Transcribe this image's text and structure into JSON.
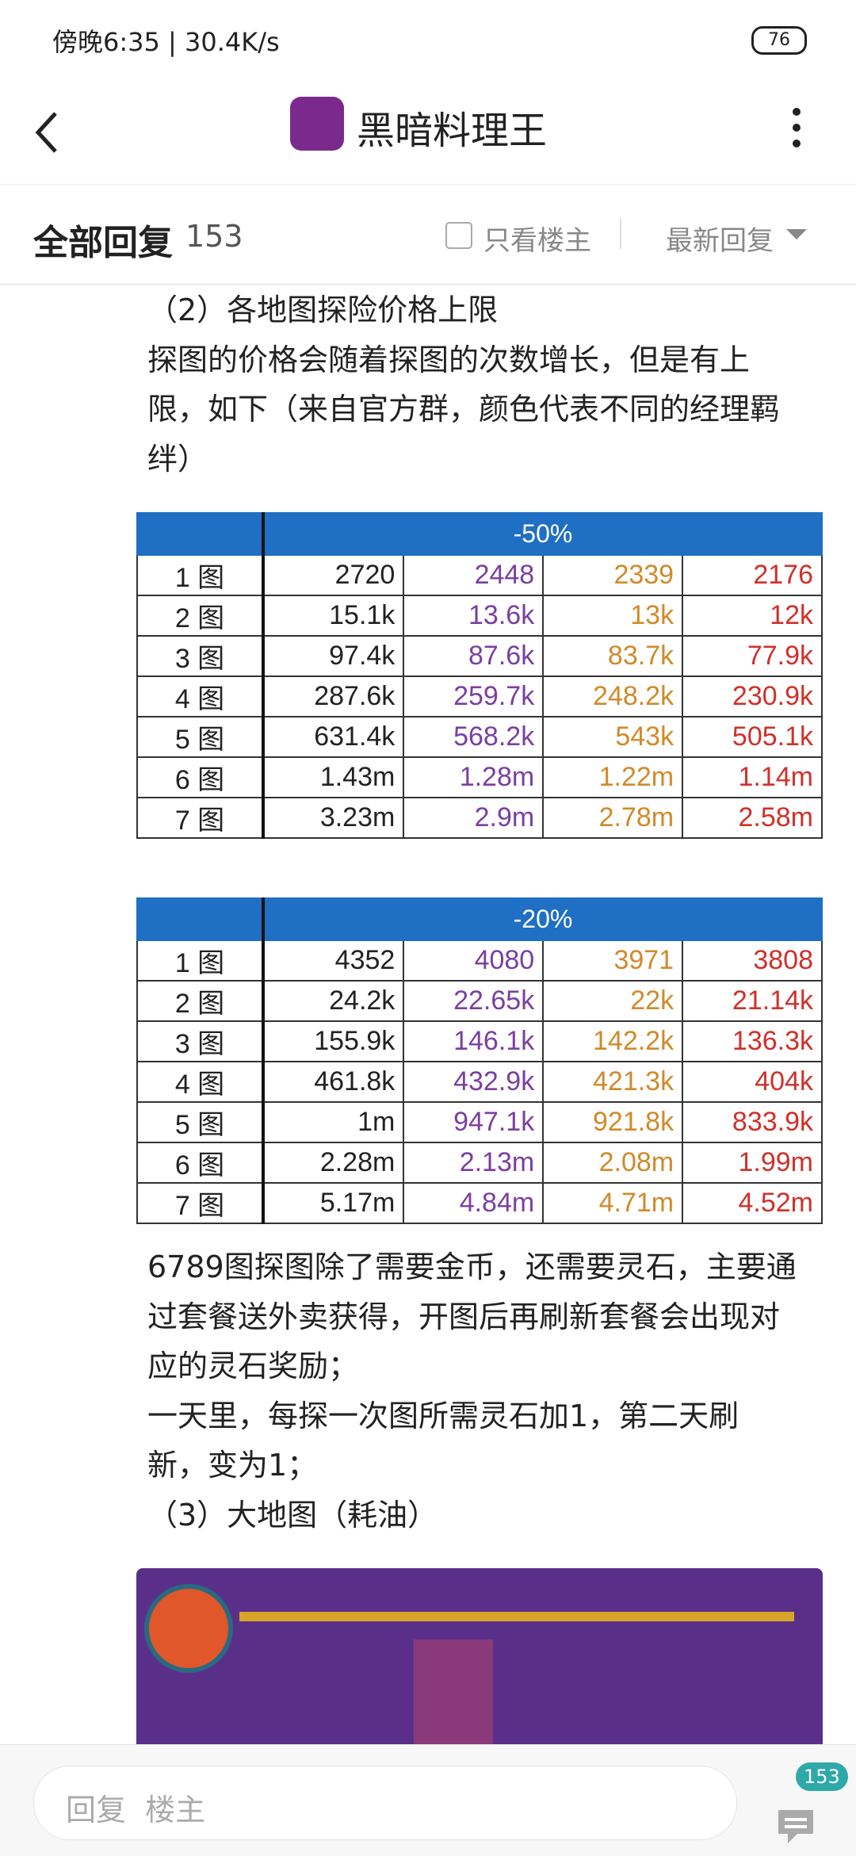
{
  "status_bar": {
    "time": "傍晚6:35 | 30.4K/s",
    "battery": "76"
  },
  "header": {
    "title": "黑暗料理王"
  },
  "reply_bar": {
    "label": "全部回复",
    "count": "153",
    "only_op": "只看楼主",
    "sort": "最新回复"
  },
  "intro_lines": [
    "（2）各地图探险价格上限",
    "探图的价格会随着探图的次数增长，但是有上",
    "限，如下（来自官方群，颜色代表不同的经理羁",
    "绊）"
  ],
  "tables": [
    {
      "header": "-50%",
      "rows": [
        [
          "1 图",
          "2720",
          "2448",
          "2339",
          "2176"
        ],
        [
          "2 图",
          "15.1k",
          "13.6k",
          "13k",
          "12k"
        ],
        [
          "3 图",
          "97.4k",
          "87.6k",
          "83.7k",
          "77.9k"
        ],
        [
          "4 图",
          "287.6k",
          "259.7k",
          "248.2k",
          "230.9k"
        ],
        [
          "5 图",
          "631.4k",
          "568.2k",
          "543k",
          "505.1k"
        ],
        [
          "6 图",
          "1.43m",
          "1.28m",
          "1.22m",
          "1.14m"
        ],
        [
          "7 图",
          "3.23m",
          "2.9m",
          "2.78m",
          "2.58m"
        ]
      ]
    },
    {
      "header": "-20%",
      "rows": [
        [
          "1 图",
          "4352",
          "4080",
          "3971",
          "3808"
        ],
        [
          "2 图",
          "24.2k",
          "22.65k",
          "22k",
          "21.14k"
        ],
        [
          "3 图",
          "155.9k",
          "146.1k",
          "142.2k",
          "136.3k"
        ],
        [
          "4 图",
          "461.8k",
          "432.9k",
          "421.3k",
          "404k"
        ],
        [
          "5 图",
          "1m",
          "947.1k",
          "921.8k",
          "833.9k"
        ],
        [
          "6 图",
          "2.28m",
          "2.13m",
          "2.08m",
          "1.99m"
        ],
        [
          "7 图",
          "5.17m",
          "4.84m",
          "4.71m",
          "4.52m"
        ]
      ]
    }
  ],
  "outro_lines": [
    "6789图探图除了需要金币，还需要灵石，主要通",
    "过套餐送外卖获得，开图后再刷新套餐会出现对",
    "应的灵石奖励；",
    "一天里，每探一次图所需灵石加1，第二天刷",
    "新，变为1；",
    "（3）大地图（耗油）"
  ],
  "footer": {
    "placeholder": "回复  楼主",
    "badge": "153"
  }
}
